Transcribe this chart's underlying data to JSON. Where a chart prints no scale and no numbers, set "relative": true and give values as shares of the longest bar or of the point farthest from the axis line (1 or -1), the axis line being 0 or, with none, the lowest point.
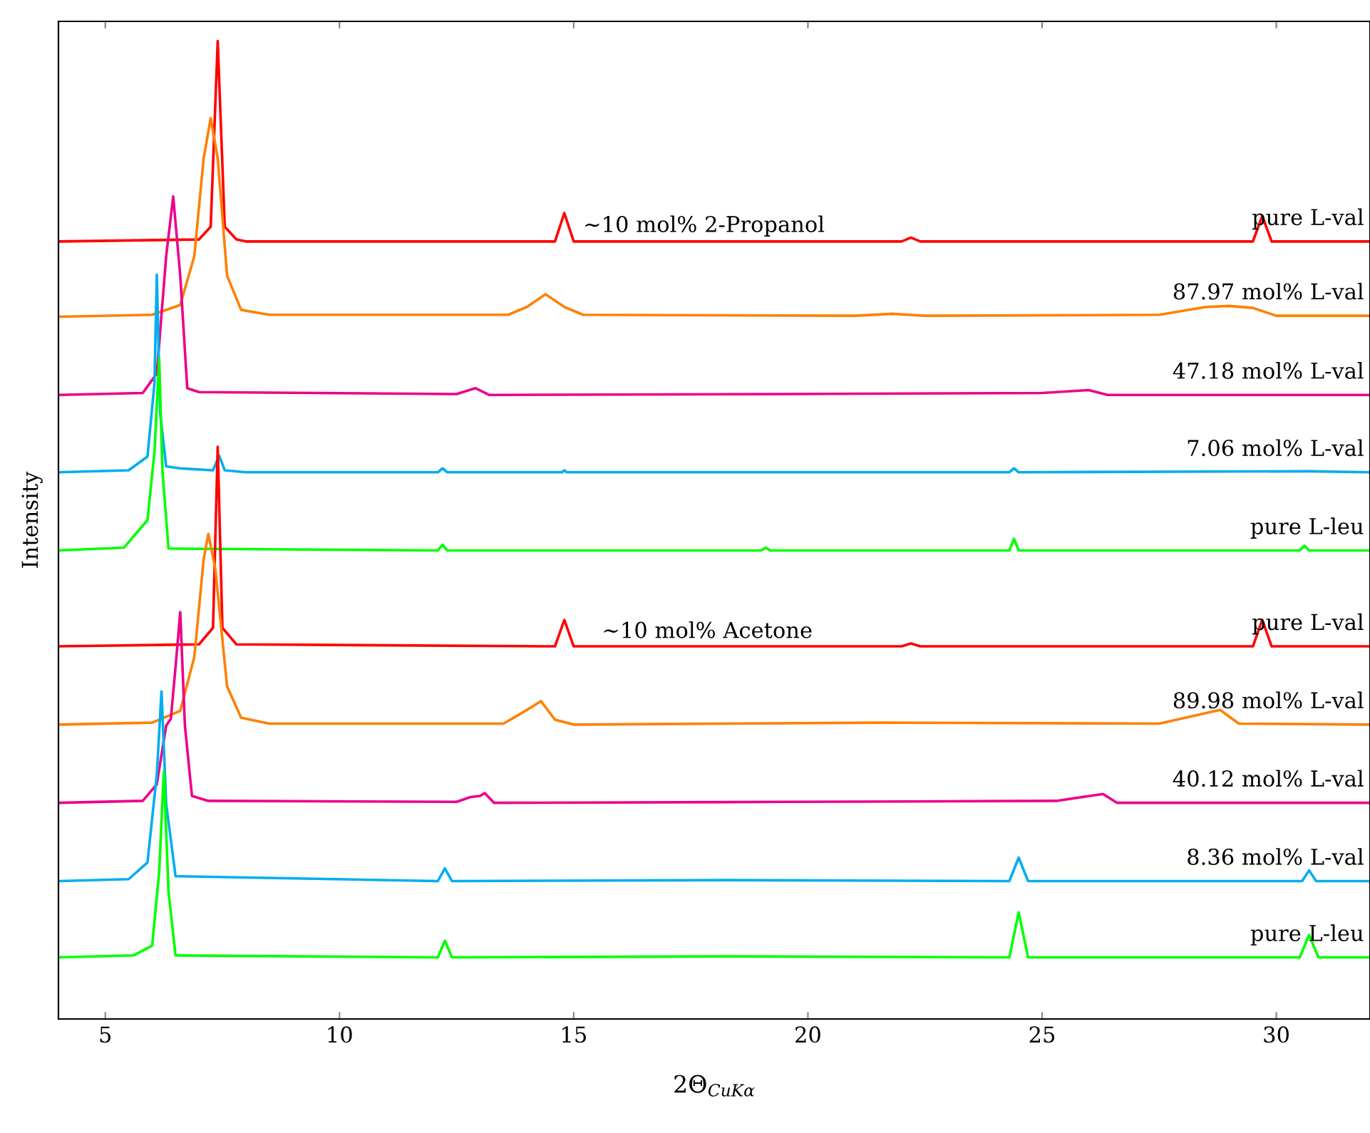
{
  "chart_data": {
    "type": "line",
    "relative": true,
    "xlabel": "2Θ$_{CuKα}$",
    "ylabel": "Intensity",
    "xlim": [
      4,
      32
    ],
    "xticks": [
      5,
      10,
      15,
      20,
      25,
      30
    ],
    "tick_labels": "x",
    "grid": false,
    "marker": "none",
    "line_style": "solid",
    "annotations": [
      {
        "text": "∼10 mol% 2-Propanol",
        "x": 15.2,
        "y": 0.8
      },
      {
        "text": "∼10 mol% Acetone",
        "x": 15.6,
        "y": 0.385
      }
    ],
    "series": [
      {
        "name": "pure L-val",
        "color": "#ff0000",
        "x": [
          4,
          7.0,
          7.25,
          7.4,
          7.55,
          7.8,
          8.0,
          14.6,
          14.8,
          15.0,
          22.0,
          22.2,
          22.4,
          29.5,
          29.7,
          29.9,
          32
        ],
        "values": [
          0.795,
          0.797,
          0.81,
          1.0,
          0.81,
          0.797,
          0.795,
          0.795,
          0.824,
          0.795,
          0.795,
          0.799,
          0.795,
          0.795,
          0.821,
          0.795,
          0.795
        ]
      },
      {
        "name": "87.97 mol% L-val",
        "color": "#ff8000",
        "x": [
          4,
          6.0,
          6.6,
          6.9,
          7.1,
          7.25,
          7.4,
          7.6,
          7.9,
          8.5,
          13.6,
          14.0,
          14.4,
          14.8,
          15.2,
          21.0,
          21.8,
          22.5,
          27.5,
          28.5,
          29.0,
          29.5,
          30.0,
          32
        ],
        "values": [
          0.718,
          0.72,
          0.73,
          0.78,
          0.88,
          0.921,
          0.88,
          0.76,
          0.725,
          0.72,
          0.72,
          0.728,
          0.741,
          0.728,
          0.72,
          0.719,
          0.721,
          0.719,
          0.72,
          0.728,
          0.729,
          0.727,
          0.719,
          0.719
        ]
      },
      {
        "name": "47.18 mol% L-val",
        "color": "#ec008c",
        "x": [
          4,
          5.8,
          6.1,
          6.3,
          6.45,
          6.6,
          6.75,
          7.0,
          12.5,
          12.9,
          13.2,
          19.4,
          25.0,
          26.0,
          26.4,
          32
        ],
        "values": [
          0.638,
          0.64,
          0.66,
          0.78,
          0.841,
          0.76,
          0.645,
          0.641,
          0.639,
          0.645,
          0.638,
          0.639,
          0.64,
          0.643,
          0.638,
          0.638
        ]
      },
      {
        "name": "7.06 mol% L-val",
        "color": "#00aeef",
        "x": [
          4,
          5.5,
          5.9,
          6.05,
          6.1,
          6.17,
          6.3,
          6.6,
          7.3,
          7.43,
          7.55,
          8.0,
          12.1,
          12.2,
          12.3,
          14.75,
          14.8,
          14.85,
          24.3,
          24.4,
          24.5,
          30.7,
          32
        ],
        "values": [
          0.559,
          0.561,
          0.575,
          0.65,
          0.761,
          0.62,
          0.565,
          0.563,
          0.561,
          0.576,
          0.561,
          0.559,
          0.559,
          0.563,
          0.559,
          0.559,
          0.561,
          0.559,
          0.559,
          0.563,
          0.559,
          0.56,
          0.559
        ]
      },
      {
        "name": "pure L-leu",
        "color": "#00ff00",
        "x": [
          4,
          5.4,
          5.9,
          6.05,
          6.15,
          6.22,
          6.35,
          12.1,
          12.2,
          12.3,
          19.0,
          19.1,
          19.2,
          24.3,
          24.4,
          24.5,
          30.5,
          30.6,
          30.7,
          32
        ],
        "values": [
          0.479,
          0.482,
          0.51,
          0.58,
          0.675,
          0.56,
          0.481,
          0.479,
          0.485,
          0.479,
          0.479,
          0.482,
          0.479,
          0.479,
          0.491,
          0.479,
          0.479,
          0.484,
          0.479,
          0.479
        ]
      },
      {
        "name": "pure L-val",
        "color": "#ff0000",
        "x": [
          4,
          7.0,
          7.3,
          7.4,
          7.5,
          7.8,
          14.6,
          14.8,
          15.0,
          22.0,
          22.2,
          22.4,
          29.5,
          29.7,
          29.9,
          32
        ],
        "values": [
          0.381,
          0.383,
          0.4,
          0.585,
          0.4,
          0.383,
          0.381,
          0.408,
          0.381,
          0.381,
          0.384,
          0.381,
          0.381,
          0.408,
          0.381,
          0.381
        ]
      },
      {
        "name": "89.98 mol% L-val",
        "color": "#ff8000",
        "x": [
          4,
          6.0,
          6.6,
          6.9,
          7.1,
          7.2,
          7.35,
          7.6,
          7.9,
          8.5,
          13.5,
          13.9,
          14.3,
          14.6,
          15.0,
          21.6,
          27.5,
          28.8,
          29.2,
          32
        ],
        "values": [
          0.301,
          0.303,
          0.315,
          0.37,
          0.47,
          0.496,
          0.46,
          0.34,
          0.308,
          0.302,
          0.302,
          0.313,
          0.325,
          0.306,
          0.301,
          0.303,
          0.302,
          0.316,
          0.302,
          0.301
        ]
      },
      {
        "name": "40.12 mol% L-val",
        "color": "#ec008c",
        "x": [
          4,
          5.8,
          6.1,
          6.3,
          6.4,
          6.5,
          6.6,
          6.7,
          6.85,
          7.2,
          12.5,
          12.8,
          13.0,
          13.1,
          13.3,
          19.6,
          25.3,
          26.3,
          26.6,
          32
        ],
        "values": [
          0.221,
          0.223,
          0.24,
          0.3,
          0.307,
          0.36,
          0.416,
          0.3,
          0.228,
          0.223,
          0.222,
          0.227,
          0.228,
          0.231,
          0.221,
          0.222,
          0.223,
          0.23,
          0.221,
          0.221
        ]
      },
      {
        "name": "8.36 mol% L-val",
        "color": "#00aeef",
        "x": [
          4,
          5.5,
          5.9,
          6.1,
          6.2,
          6.3,
          6.5,
          12.1,
          12.25,
          12.4,
          18.3,
          24.3,
          24.5,
          24.7,
          30.55,
          30.7,
          30.85,
          32
        ],
        "values": [
          0.141,
          0.143,
          0.16,
          0.25,
          0.335,
          0.22,
          0.146,
          0.141,
          0.154,
          0.141,
          0.142,
          0.141,
          0.165,
          0.141,
          0.141,
          0.152,
          0.141,
          0.141
        ]
      },
      {
        "name": "pure L-leu",
        "color": "#00ff00",
        "x": [
          4,
          5.6,
          6.0,
          6.15,
          6.25,
          6.35,
          6.5,
          12.1,
          12.25,
          12.4,
          18.3,
          24.3,
          24.5,
          24.7,
          30.5,
          30.7,
          30.9,
          32
        ],
        "values": [
          0.063,
          0.065,
          0.075,
          0.15,
          0.253,
          0.13,
          0.065,
          0.063,
          0.08,
          0.063,
          0.064,
          0.063,
          0.109,
          0.063,
          0.063,
          0.086,
          0.063,
          0.063
        ]
      }
    ]
  }
}
